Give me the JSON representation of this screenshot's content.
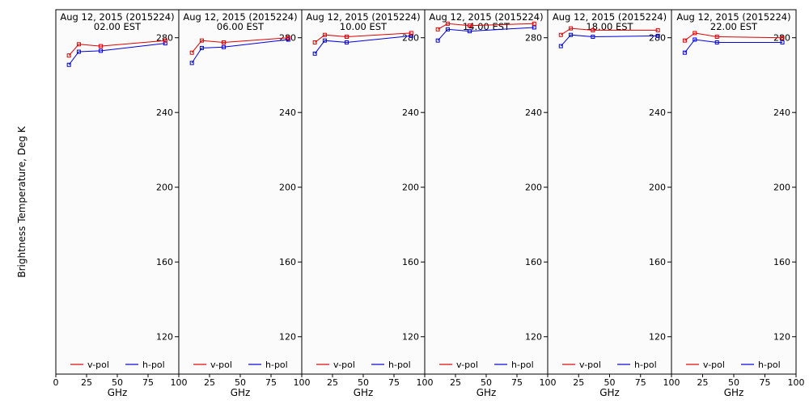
{
  "figure": {
    "ylabel": "Brightness Temperature, Deg K",
    "xlabel": "GHz",
    "background": "#fbfbfb",
    "ylim": [
      100,
      295
    ],
    "xlim": [
      0,
      100
    ],
    "yticks": [
      120,
      160,
      200,
      240,
      280
    ],
    "xticks_first_panel": [
      0,
      25,
      50,
      75,
      100
    ],
    "xticks_other_panels": [
      25,
      50,
      75,
      100
    ],
    "legend_placement": "bottom",
    "legend": [
      {
        "name": "v-pol",
        "color": "#e00000"
      },
      {
        "name": "h-pol",
        "color": "#0000e0"
      }
    ]
  },
  "chart_data": [
    {
      "type": "line",
      "title": "Aug 12, 2015 (2015224)",
      "subtitle": "02.00 EST",
      "xlabel": "GHz",
      "ylabel": "Brightness Temperature, Deg K",
      "xlim": [
        0,
        100
      ],
      "ylim": [
        100,
        295
      ],
      "x": [
        10.65,
        18.7,
        36.5,
        89.0
      ],
      "series": [
        {
          "name": "v-pol",
          "values": [
            270.5,
            276.5,
            275.5,
            278.5
          ]
        },
        {
          "name": "h-pol",
          "values": [
            265.5,
            272.5,
            273.0,
            277.0
          ]
        }
      ]
    },
    {
      "type": "line",
      "title": "Aug 12, 2015 (2015224)",
      "subtitle": "06.00 EST",
      "xlabel": "GHz",
      "xlim": [
        0,
        100
      ],
      "ylim": [
        100,
        295
      ],
      "x": [
        10.65,
        18.7,
        36.5,
        89.0
      ],
      "series": [
        {
          "name": "v-pol",
          "values": [
            272.0,
            278.5,
            277.5,
            280.0
          ]
        },
        {
          "name": "h-pol",
          "values": [
            266.5,
            274.5,
            275.0,
            279.0
          ]
        }
      ]
    },
    {
      "type": "line",
      "title": "Aug 12, 2015 (2015224)",
      "subtitle": "10.00 EST",
      "xlabel": "GHz",
      "xlim": [
        0,
        100
      ],
      "ylim": [
        100,
        295
      ],
      "x": [
        10.65,
        18.7,
        36.5,
        89.0
      ],
      "series": [
        {
          "name": "v-pol",
          "values": [
            277.5,
            281.5,
            280.5,
            282.5
          ]
        },
        {
          "name": "h-pol",
          "values": [
            271.5,
            278.5,
            277.5,
            281.0
          ]
        }
      ]
    },
    {
      "type": "line",
      "title": "Aug 12, 2015 (2015224)",
      "subtitle": "14.00 EST",
      "xlabel": "GHz",
      "xlim": [
        0,
        100
      ],
      "ylim": [
        100,
        295
      ],
      "x": [
        10.65,
        18.7,
        36.5,
        89.0
      ],
      "series": [
        {
          "name": "v-pol",
          "values": [
            284.5,
            287.5,
            286.5,
            287.5
          ]
        },
        {
          "name": "h-pol",
          "values": [
            278.5,
            284.5,
            283.5,
            285.5
          ]
        }
      ]
    },
    {
      "type": "line",
      "title": "Aug 12, 2015 (2015224)",
      "subtitle": "18.00 EST",
      "xlabel": "GHz",
      "xlim": [
        0,
        100
      ],
      "ylim": [
        100,
        295
      ],
      "x": [
        10.65,
        18.7,
        36.5,
        89.0
      ],
      "series": [
        {
          "name": "v-pol",
          "values": [
            281.5,
            285.0,
            284.0,
            284.0
          ]
        },
        {
          "name": "h-pol",
          "values": [
            275.5,
            281.5,
            280.5,
            281.0
          ]
        }
      ]
    },
    {
      "type": "line",
      "title": "Aug 12, 2015 (2015224)",
      "subtitle": "22.00 EST",
      "xlabel": "GHz",
      "xlim": [
        0,
        100
      ],
      "ylim": [
        100,
        295
      ],
      "x": [
        10.65,
        18.7,
        36.5,
        89.0
      ],
      "series": [
        {
          "name": "v-pol",
          "values": [
            278.5,
            282.5,
            280.5,
            280.0
          ]
        },
        {
          "name": "h-pol",
          "values": [
            272.0,
            279.0,
            277.5,
            277.5
          ]
        }
      ]
    }
  ]
}
